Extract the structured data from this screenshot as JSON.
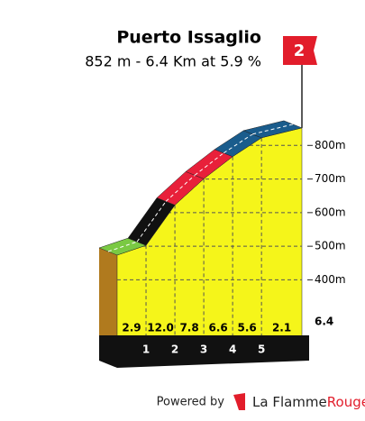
{
  "chart_data": {
    "type": "profile",
    "title": "Puerto Issaglio",
    "subtitle": "852 m - 6.4 Km at 5.9 %",
    "category": "2",
    "summit_altitude": 852,
    "xlim": [
      0,
      6.4
    ],
    "xticks": [
      1,
      2,
      3,
      4,
      5,
      6.4
    ],
    "ylim": [
      200,
      900
    ],
    "yticks": [
      {
        "value": 400,
        "label": "400m"
      },
      {
        "value": 500,
        "label": "500m"
      },
      {
        "value": 600,
        "label": "600m"
      },
      {
        "value": 700,
        "label": "700m"
      },
      {
        "value": 800,
        "label": "800m"
      }
    ],
    "grid": true,
    "segments": {
      "values": [
        2.9,
        12.0,
        7.8,
        6.6,
        5.6,
        2.1
      ],
      "value_labels": [
        "2.9",
        "12.0",
        "7.8",
        "6.6",
        "5.6",
        "2.1"
      ],
      "colors": [
        "#7ac943",
        "#111111",
        "#e8203a",
        "#e8203a",
        "#1a5c8c",
        "#1a5c8c"
      ]
    }
  },
  "footer": {
    "powered_by": "Powered by",
    "brand": "La Flamme",
    "brand_accent": "Rouge"
  }
}
